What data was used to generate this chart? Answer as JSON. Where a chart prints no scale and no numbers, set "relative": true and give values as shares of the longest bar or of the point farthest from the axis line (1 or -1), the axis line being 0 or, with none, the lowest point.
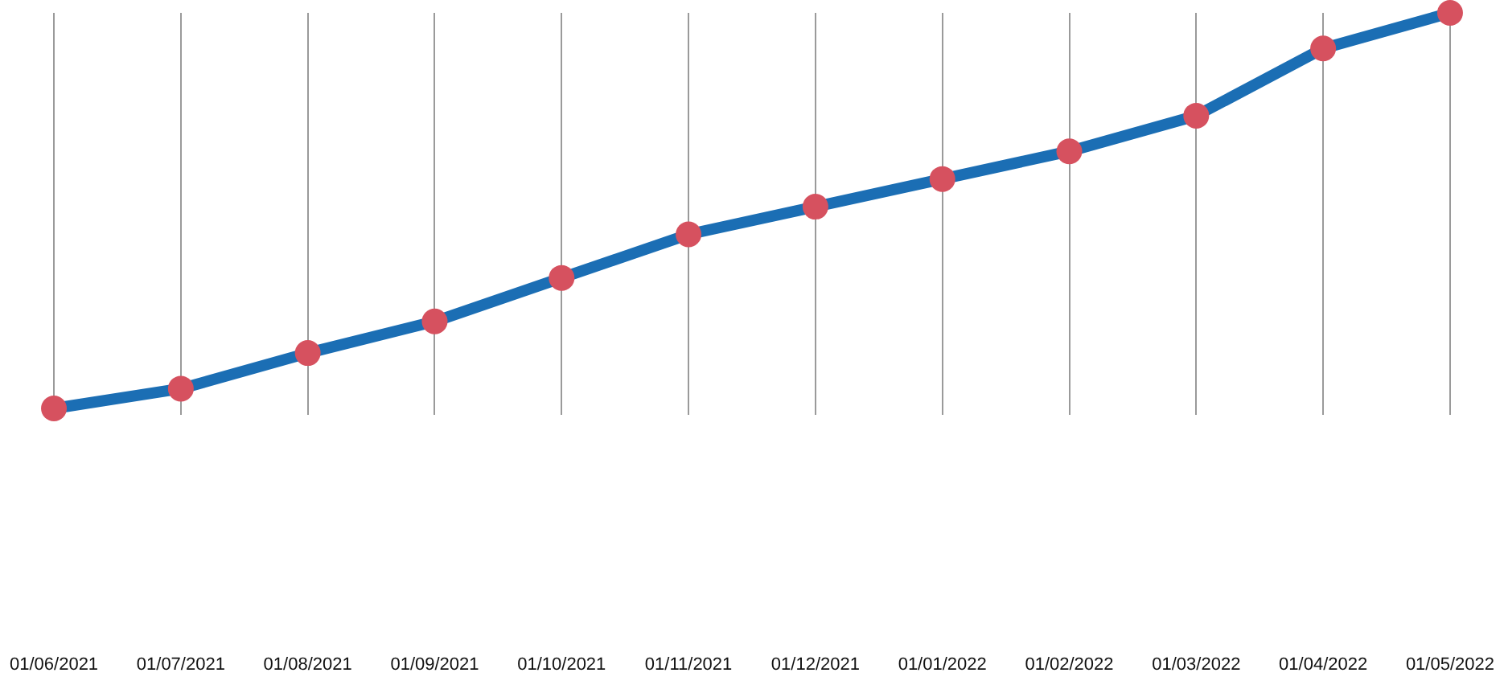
{
  "chart_data": {
    "type": "line",
    "relative": true,
    "grid": "x",
    "marker": "circle",
    "line_style": "solid",
    "categories": [
      "01/06/2021",
      "01/07/2021",
      "01/08/2021",
      "01/09/2021",
      "01/10/2021",
      "01/11/2021",
      "01/12/2021",
      "01/01/2022",
      "01/02/2022",
      "01/03/2022",
      "01/04/2022",
      "01/05/2022"
    ],
    "series": [
      {
        "color": "#1b6eb4",
        "colors": [
          "#d6515f",
          "#d6515f",
          "#d6515f",
          "#d6515f",
          "#d6515f",
          "#d6515f",
          "#d6515f",
          "#d6515f",
          "#d6515f",
          "#d6515f",
          "#d6515f",
          "#d6515f"
        ],
        "values": [
          0,
          0.05,
          0.14,
          0.22,
          0.33,
          0.44,
          0.51,
          0.58,
          0.65,
          0.74,
          0.91,
          1
        ]
      }
    ]
  }
}
